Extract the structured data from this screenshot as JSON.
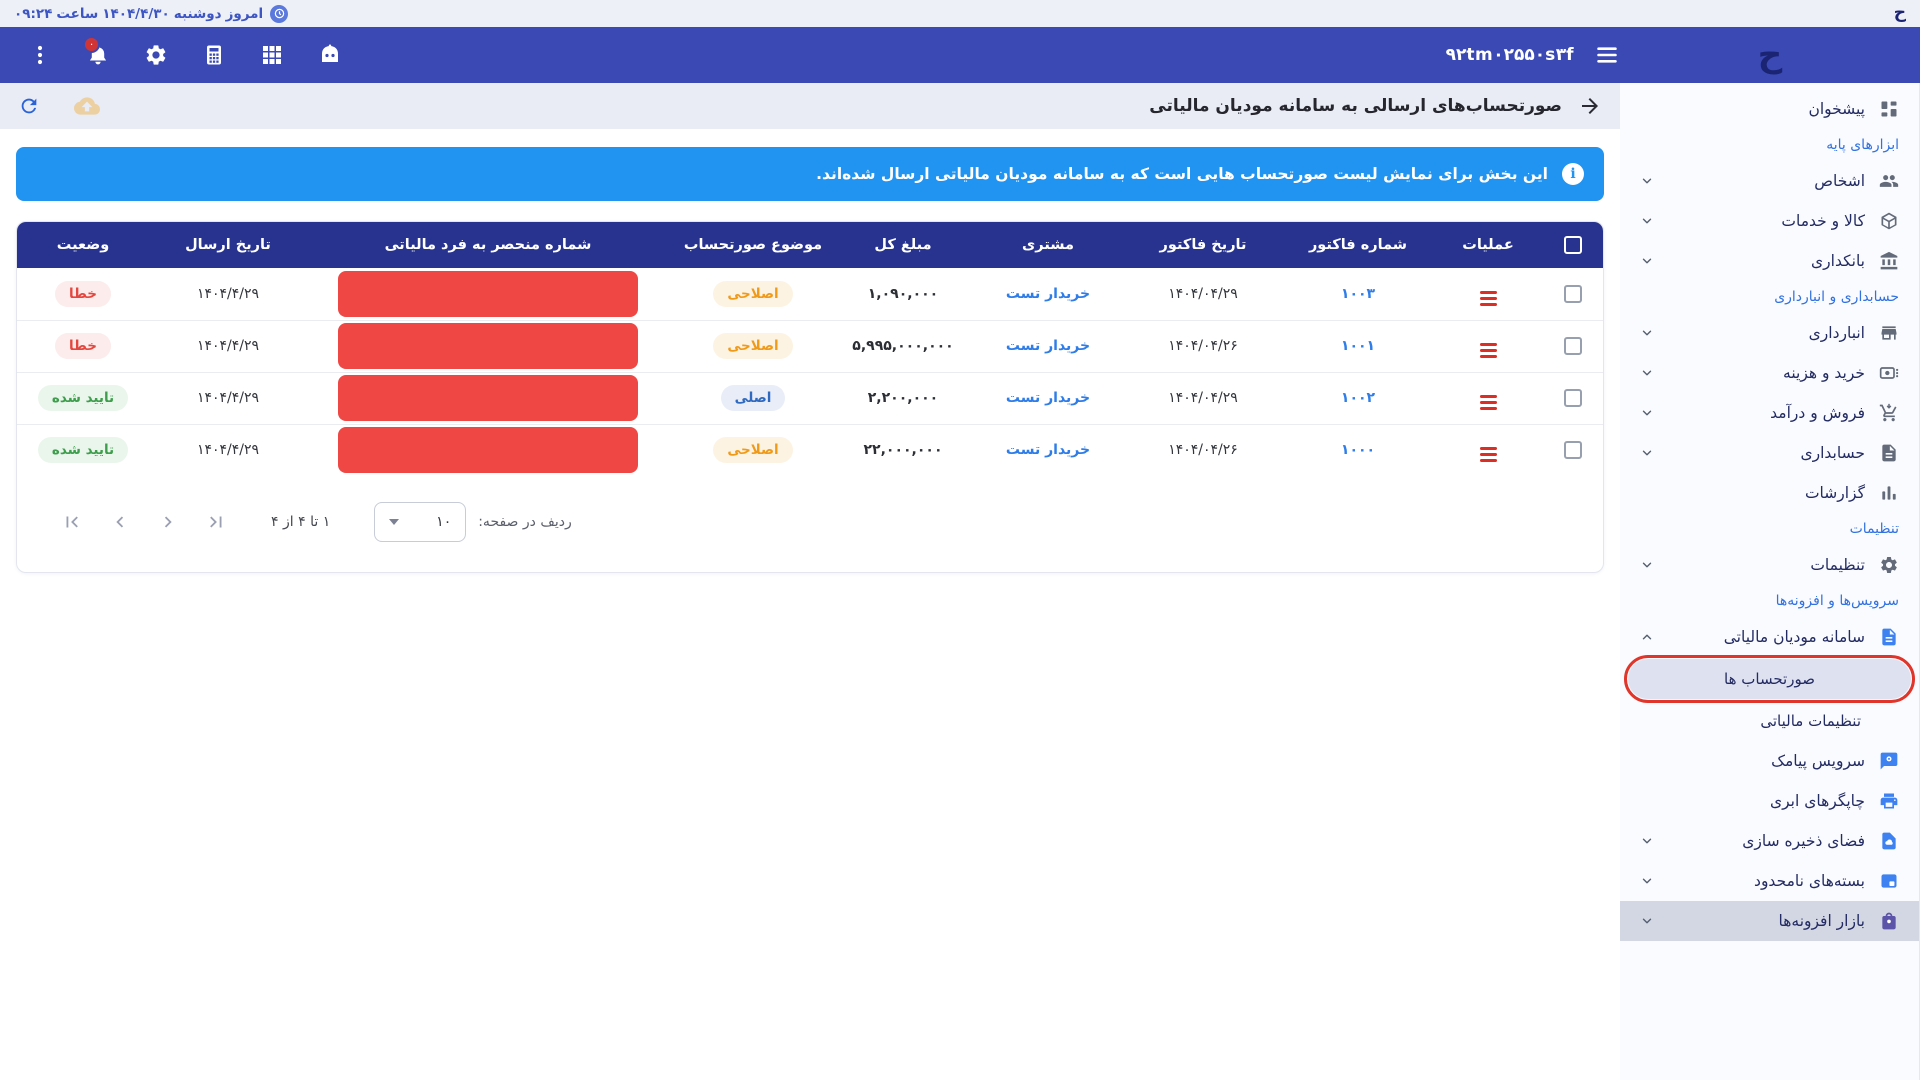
{
  "topbar": {
    "today_label": "امروز",
    "weekday": "دوشنبه",
    "date": "۱۴۰۴/۴/۳۰",
    "time_label": "ساعت",
    "time": "۰۹:۲۴",
    "logo_glyph": "ح"
  },
  "header": {
    "company_id": "۹۲tm۰۲۵۵۰s۳f",
    "notification_count": "۰",
    "logo_glyph": "ح"
  },
  "page": {
    "title": "صورتحساب‌های ارسالی به سامانه مودیان مالیاتی",
    "info_banner": "این بخش برای نمایش لیست صورتحساب هایی است که به سامانه مودیان مالیاتی ارسال شده‌اند."
  },
  "table": {
    "columns": [
      "عملیات",
      "شماره فاکتور",
      "تاریخ فاکتور",
      "مشتری",
      "مبلغ کل",
      "موضوع صورتحساب",
      "شماره منحصر به فرد مالیاتی",
      "تاریخ ارسال",
      "وضعیت"
    ],
    "rows": [
      {
        "invoice_no": "۱۰۰۳",
        "invoice_date": "۱۴۰۴/۰۴/۲۹",
        "customer": "خریدار تست",
        "total": "۱,۰۹۰,۰۰۰",
        "subject": "اصلاحی",
        "subject_type": "orange",
        "tax_id_redacted": true,
        "send_date": "۱۴۰۴/۴/۲۹",
        "status": "خطا",
        "status_type": "error"
      },
      {
        "invoice_no": "۱۰۰۱",
        "invoice_date": "۱۴۰۴/۰۴/۲۶",
        "customer": "خریدار تست",
        "total": "۵,۹۹۵,۰۰۰,۰۰۰",
        "subject": "اصلاحی",
        "subject_type": "orange",
        "tax_id_redacted": true,
        "send_date": "۱۴۰۴/۴/۲۹",
        "status": "خطا",
        "status_type": "error"
      },
      {
        "invoice_no": "۱۰۰۲",
        "invoice_date": "۱۴۰۴/۰۴/۲۹",
        "customer": "خریدار تست",
        "total": "۲,۲۰۰,۰۰۰",
        "subject": "اصلی",
        "subject_type": "blue",
        "tax_id_redacted": true,
        "send_date": "۱۴۰۴/۴/۲۹",
        "status": "تایید شده",
        "status_type": "success"
      },
      {
        "invoice_no": "۱۰۰۰",
        "invoice_date": "۱۴۰۴/۰۴/۲۶",
        "customer": "خریدار تست",
        "total": "۲۲,۰۰۰,۰۰۰",
        "subject": "اصلاحی",
        "subject_type": "orange",
        "tax_id_redacted": true,
        "send_date": "۱۴۰۴/۴/۲۹",
        "status": "تایید شده",
        "status_type": "success"
      }
    ]
  },
  "pagination": {
    "rows_per_page_label": "ردیف در صفحه:",
    "rows_per_page_value": "۱۰",
    "range_label": "۱ تا ۴ از ۴"
  },
  "sidebar": {
    "items": [
      {
        "type": "item",
        "name": "dashboard",
        "label": "پیشخوان",
        "icon": "dashboard",
        "icon_color": "gray"
      },
      {
        "type": "section",
        "name": "base-tools",
        "label": "ابزارهای پایه"
      },
      {
        "type": "item",
        "name": "persons",
        "label": "اشخاص",
        "icon": "people",
        "icon_color": "gray",
        "chevron": "down"
      },
      {
        "type": "item",
        "name": "goods-services",
        "label": "کالا و خدمات",
        "icon": "box",
        "icon_color": "gray",
        "chevron": "down"
      },
      {
        "type": "item",
        "name": "banking",
        "label": "بانکداری",
        "icon": "bank",
        "icon_color": "gray",
        "chevron": "down"
      },
      {
        "type": "section",
        "name": "accounting-warehousing",
        "label": "حسابداری و انبارداری"
      },
      {
        "type": "item",
        "name": "warehousing",
        "label": "انبارداری",
        "icon": "warehouse",
        "icon_color": "gray",
        "chevron": "down"
      },
      {
        "type": "item",
        "name": "purchase-expense",
        "label": "خرید و هزینه",
        "icon": "money",
        "icon_color": "gray",
        "chevron": "down"
      },
      {
        "type": "item",
        "name": "sales-income",
        "label": "فروش و درآمد",
        "icon": "cart",
        "icon_color": "gray",
        "chevron": "down"
      },
      {
        "type": "item",
        "name": "accounting",
        "label": "حسابداری",
        "icon": "document",
        "icon_color": "gray",
        "chevron": "down"
      },
      {
        "type": "item",
        "name": "reports",
        "label": "گزارشات",
        "icon": "chart",
        "icon_color": "gray"
      },
      {
        "type": "section",
        "name": "settings-section",
        "label": "تنظیمات"
      },
      {
        "type": "item",
        "name": "settings",
        "label": "تنظیمات",
        "icon": "gear",
        "icon_color": "gray",
        "chevron": "down"
      },
      {
        "type": "section",
        "name": "services-addons",
        "label": "سرویس‌ها و افزونه‌ها"
      },
      {
        "type": "item",
        "name": "tax-system",
        "label": "سامانه مودیان مالیاتی",
        "icon": "tax-doc",
        "icon_color": "blue",
        "chevron": "up"
      },
      {
        "type": "active-sub",
        "name": "invoices",
        "label": "صورتحساب ها",
        "annotated": true
      },
      {
        "type": "sub",
        "name": "tax-settings",
        "label": "تنظیمات مالیاتی"
      },
      {
        "type": "item",
        "name": "sms-service",
        "label": "سرویس پیامک",
        "icon": "sms",
        "icon_color": "blue"
      },
      {
        "type": "item",
        "name": "cloud-printers",
        "label": "چاپگرهای ابری",
        "icon": "printer",
        "icon_color": "blue"
      },
      {
        "type": "item",
        "name": "storage-space",
        "label": "فضای ذخیره سازی",
        "icon": "storage",
        "icon_color": "blue",
        "chevron": "down"
      },
      {
        "type": "item",
        "name": "unlimited-packages",
        "label": "بسته‌های نامحدود",
        "icon": "package",
        "icon_color": "blue",
        "chevron": "down"
      },
      {
        "type": "item",
        "name": "addons-market",
        "label": "بازار افزونه‌ها",
        "icon": "bag",
        "icon_color": "purple",
        "chevron": "down",
        "highlighted": true
      }
    ]
  },
  "colors": {
    "header_bg": "#3a49b4",
    "banner_bg": "#2193f0",
    "table_header_bg": "#27338f",
    "link_blue": "#2e7de8",
    "error_red": "#e4473f",
    "success_green": "#3f9e4d",
    "warning_orange": "#f09a1a",
    "redaction_red": "#ef4744",
    "annotation_red": "#e0352b"
  }
}
